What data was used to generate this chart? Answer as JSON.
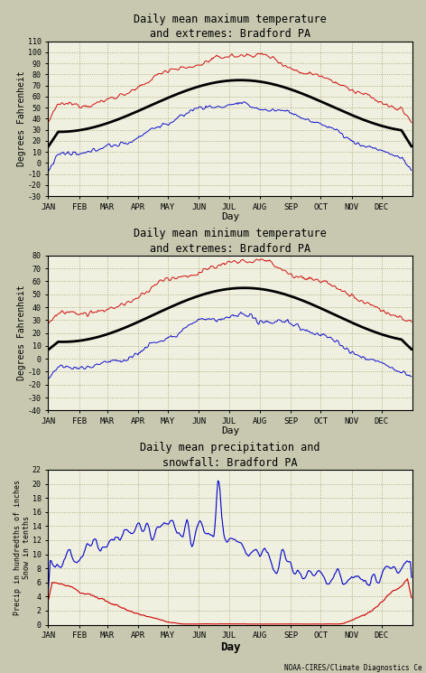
{
  "title1": "Daily mean maximum temperature\nand extremes: Bradford PA",
  "title2": "Daily mean minimum temperature\nand extremes: Bradford PA",
  "title3": "Daily mean precipitation and\nsnowfall: Bradford PA",
  "ylabel1": "Degrees Fahrenheit",
  "ylabel2": "Degrees Fahrenheit",
  "ylabel3": "Precip in hundredths of inches\nSnow in tenths",
  "xlabel": "Day",
  "months": [
    "JAN",
    "FEB",
    "MAR",
    "APR",
    "MAY",
    "JUN",
    "JUL",
    "AUG",
    "SEP",
    "OCT",
    "NOV",
    "DEC"
  ],
  "bg_color": "#f0f0e0",
  "fig_color": "#c8c8b0",
  "grid_color": "#a0a070",
  "line_color_red": "#cc0000",
  "line_color_blue": "#0000cc",
  "line_color_black": "#000000",
  "font_family": "monospace",
  "ylim1": [
    -30,
    110
  ],
  "ylim2": [
    -40,
    80
  ],
  "ylim3": [
    0,
    22
  ],
  "yticks1": [
    -30,
    -20,
    -10,
    0,
    10,
    20,
    30,
    40,
    50,
    60,
    70,
    80,
    90,
    100,
    110
  ],
  "yticks2": [
    -40,
    -30,
    -20,
    -10,
    0,
    10,
    20,
    30,
    40,
    50,
    60,
    70,
    80
  ],
  "yticks3": [
    0,
    2,
    4,
    6,
    8,
    10,
    12,
    14,
    16,
    18,
    20,
    22
  ],
  "footnote": "NOAA-CIRES/Climate Diagnostics Ce"
}
